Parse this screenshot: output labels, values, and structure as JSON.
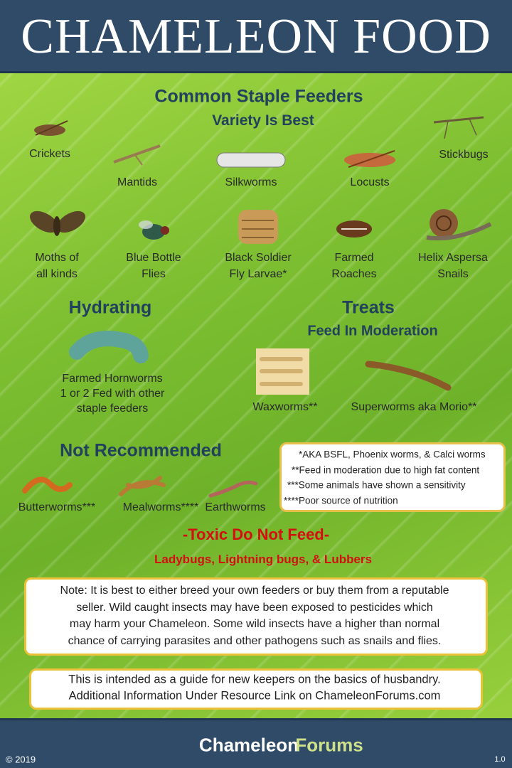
{
  "header": {
    "title": "CHAMELEON FOOD"
  },
  "staple": {
    "title": "Common Staple Feeders",
    "subtitle": "Variety Is Best",
    "items": [
      {
        "lines": [
          "Crickets"
        ]
      },
      {
        "lines": [
          "Mantids"
        ]
      },
      {
        "lines": [
          "Silkworms"
        ]
      },
      {
        "lines": [
          "Locusts"
        ]
      },
      {
        "lines": [
          "Stickbugs"
        ]
      },
      {
        "lines": [
          "Moths of",
          "all kinds"
        ]
      },
      {
        "lines": [
          "Blue Bottle",
          "Flies"
        ]
      },
      {
        "lines": [
          "Black Soldier",
          "Fly Larvae*"
        ]
      },
      {
        "lines": [
          "Farmed",
          "Roaches"
        ]
      },
      {
        "lines": [
          "Helix Aspersa",
          "Snails"
        ]
      }
    ]
  },
  "hydrating": {
    "title": "Hydrating",
    "items": [
      {
        "lines": [
          "Farmed Hornworms",
          "1 or 2 Fed with other",
          "staple feeders"
        ]
      }
    ]
  },
  "treats": {
    "title": "Treats",
    "subtitle": "Feed In Moderation",
    "items": [
      {
        "lines": [
          "Waxworms**"
        ]
      },
      {
        "lines": [
          "Superworms aka Morio**"
        ]
      }
    ]
  },
  "not_recommended": {
    "title": "Not Recommended",
    "items": [
      {
        "lines": [
          "Butterworms***"
        ]
      },
      {
        "lines": [
          "Mealworms****"
        ]
      },
      {
        "lines": [
          "Earthworms"
        ]
      }
    ]
  },
  "footnotes": [
    "*AKA BSFL, Phoenix worms, & Calci worms",
    "**Feed in moderation due to high fat content",
    "***Some animals have shown a sensitivity",
    "****Poor source of nutrition"
  ],
  "toxic": {
    "title": "-Toxic Do Not Feed-",
    "list": "Ladybugs, Lightning bugs, & Lubbers"
  },
  "note": {
    "lines": [
      "Note: It is best to either breed your own feeders or buy them from a reputable",
      "seller. Wild caught insects may have been exposed to pesticides which",
      "may harm your Chameleon. Some wild insects have a higher than normal",
      "chance of carrying parasites and other pathogens such as snails and flies."
    ]
  },
  "guide": {
    "lines": [
      "This is intended as a guide for new keepers on the basics of husbandry.",
      "Additional Information Under Resource Link on ChameleonForums.com"
    ]
  },
  "footer": {
    "copyright": "© 2019",
    "brand": [
      "Chameleon",
      "Forums"
    ],
    "version": "1.0"
  }
}
